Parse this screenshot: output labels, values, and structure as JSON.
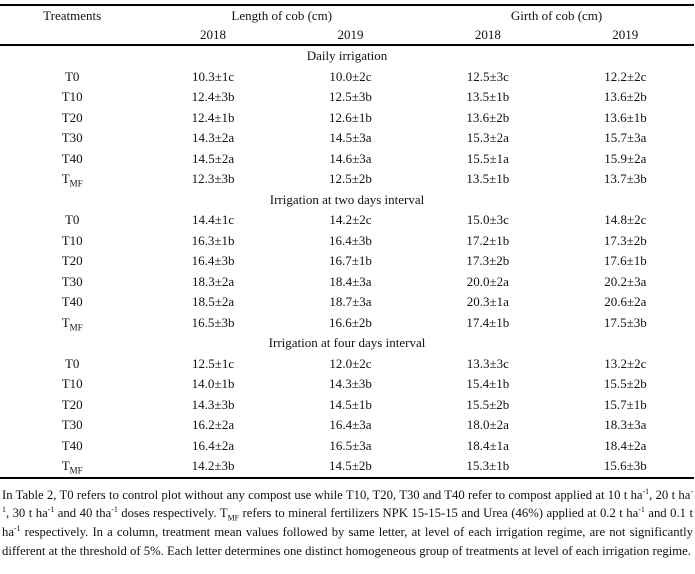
{
  "colors": {
    "text": "#111111",
    "rule": "#000000",
    "background": "#ffffff"
  },
  "table": {
    "header": {
      "treatments": "Treatments",
      "length_group": "Length of cob (cm)",
      "girth_group": "Girth of cob (cm)",
      "years": [
        "2018",
        "2019",
        "2018",
        "2019"
      ]
    },
    "sections": [
      {
        "title": "Daily irrigation",
        "rows": [
          {
            "treatment": "T0",
            "sub": "",
            "values": [
              "10.3±1c",
              "10.0±2c",
              "12.5±3c",
              "12.2±2c"
            ]
          },
          {
            "treatment": "T10",
            "sub": "",
            "values": [
              "12.4±3b",
              "12.5±3b",
              "13.5±1b",
              "13.6±2b"
            ]
          },
          {
            "treatment": "T20",
            "sub": "",
            "values": [
              "12.4±1b",
              "12.6±1b",
              "13.6±2b",
              "13.6±1b"
            ]
          },
          {
            "treatment": "T30",
            "sub": "",
            "values": [
              "14.3±2a",
              "14.5±3a",
              "15.3±2a",
              "15.7±3a"
            ]
          },
          {
            "treatment": "T40",
            "sub": "",
            "values": [
              "14.5±2a",
              "14.6±3a",
              "15.5±1a",
              "15.9±2a"
            ]
          },
          {
            "treatment": "T",
            "sub": "MF",
            "values": [
              "12.3±3b",
              "12.5±2b",
              "13.5±1b",
              "13.7±3b"
            ]
          }
        ]
      },
      {
        "title": "Irrigation at two days interval",
        "rows": [
          {
            "treatment": "T0",
            "sub": "",
            "values": [
              "14.4±1c",
              "14.2±2c",
              "15.0±3c",
              "14.8±2c"
            ]
          },
          {
            "treatment": "T10",
            "sub": "",
            "values": [
              "16.3±1b",
              "16.4±3b",
              "17.2±1b",
              "17.3±2b"
            ]
          },
          {
            "treatment": "T20",
            "sub": "",
            "values": [
              "16.4±3b",
              "16.7±1b",
              "17.3±2b",
              "17.6±1b"
            ]
          },
          {
            "treatment": "T30",
            "sub": "",
            "values": [
              "18.3±2a",
              "18.4±3a",
              "20.0±2a",
              "20.2±3a"
            ]
          },
          {
            "treatment": "T40",
            "sub": "",
            "values": [
              "18.5±2a",
              "18.7±3a",
              "20.3±1a",
              "20.6±2a"
            ]
          },
          {
            "treatment": "T",
            "sub": "MF",
            "values": [
              "16.5±3b",
              "16.6±2b",
              "17.4±1b",
              "17.5±3b"
            ]
          }
        ]
      },
      {
        "title": "Irrigation at four days interval",
        "rows": [
          {
            "treatment": "T0",
            "sub": "",
            "values": [
              "12.5±1c",
              "12.0±2c",
              "13.3±3c",
              "13.2±2c"
            ]
          },
          {
            "treatment": "T10",
            "sub": "",
            "values": [
              "14.0±1b",
              "14.3±3b",
              "15.4±1b",
              "15.5±2b"
            ]
          },
          {
            "treatment": "T20",
            "sub": "",
            "values": [
              "14.3±3b",
              "14.5±1b",
              "15.5±2b",
              "15.7±1b"
            ]
          },
          {
            "treatment": "T30",
            "sub": "",
            "values": [
              "16.2±2a",
              "16.4±3a",
              "18.0±2a",
              "18.3±3a"
            ]
          },
          {
            "treatment": "T40",
            "sub": "",
            "values": [
              "16.4±2a",
              "16.5±3a",
              "18.4±1a",
              "18.4±2a"
            ]
          },
          {
            "treatment": "T",
            "sub": "MF",
            "values": [
              "14.2±3b",
              "14.5±2b",
              "15.3±1b",
              "15.6±3b"
            ]
          }
        ]
      }
    ]
  },
  "footnote": {
    "segments": [
      {
        "s": "n",
        "t": "In Table 2, T0 refers to control plot without any compost use while T10, T20, T30 and T40 refer to compost applied at 10 t ha"
      },
      {
        "s": "sup",
        "t": "-1"
      },
      {
        "s": "n",
        "t": ", 20 t ha"
      },
      {
        "s": "sup",
        "t": "-1"
      },
      {
        "s": "n",
        "t": ", 30 t ha"
      },
      {
        "s": "sup",
        "t": "-1"
      },
      {
        "s": "n",
        "t": " and 40 tha"
      },
      {
        "s": "sup",
        "t": "-1"
      },
      {
        "s": "n",
        "t": " doses respectively. T"
      },
      {
        "s": "sub",
        "t": "MF"
      },
      {
        "s": "n",
        "t": " refers to mineral fertilizers NPK 15-15-15 and Urea (46%) applied at 0.2 t ha"
      },
      {
        "s": "sup",
        "t": "-1"
      },
      {
        "s": "n",
        "t": " and 0.1 t ha"
      },
      {
        "s": "sup",
        "t": "-1"
      },
      {
        "s": "n",
        "t": " respectively. In a column, treatment mean values followed by same letter, at level of each irrigation regime, are not significantly different at the threshold of 5%. Each letter determines one distinct homogeneous group of treatments at level of each irrigation regime."
      }
    ]
  }
}
